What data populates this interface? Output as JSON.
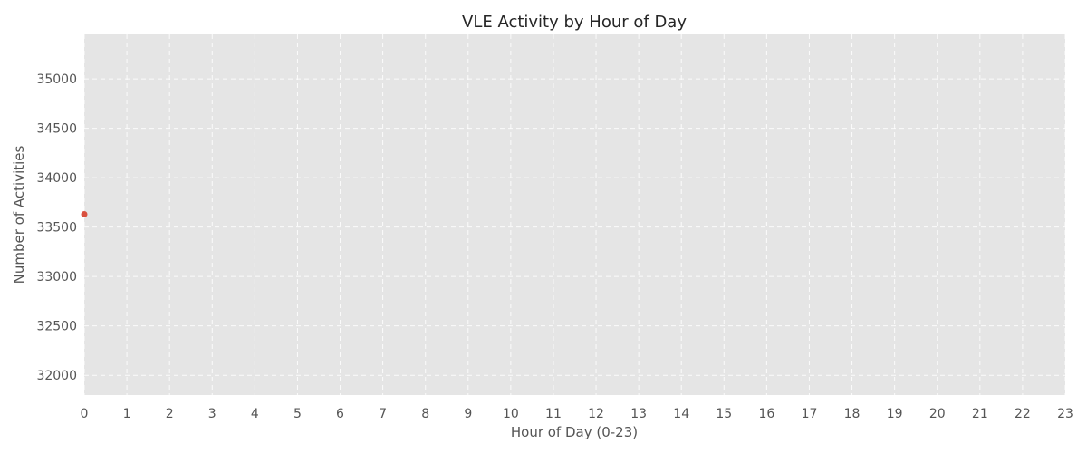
{
  "chart_data": {
    "type": "line",
    "title": "VLE Activity by Hour of Day",
    "xlabel": "Hour of Day (0-23)",
    "ylabel": "Number of Activities",
    "xlim": [
      0,
      23
    ],
    "ylim": [
      31800,
      35450
    ],
    "x_ticks": [
      0,
      1,
      2,
      3,
      4,
      5,
      6,
      7,
      8,
      9,
      10,
      11,
      12,
      13,
      14,
      15,
      16,
      17,
      18,
      19,
      20,
      21,
      22,
      23
    ],
    "y_ticks": [
      32000,
      32500,
      33000,
      33500,
      34000,
      34500,
      35000
    ],
    "grid": true,
    "series": [
      {
        "color": "#d9503f",
        "x": [
          0
        ],
        "y": [
          33630
        ]
      }
    ]
  }
}
